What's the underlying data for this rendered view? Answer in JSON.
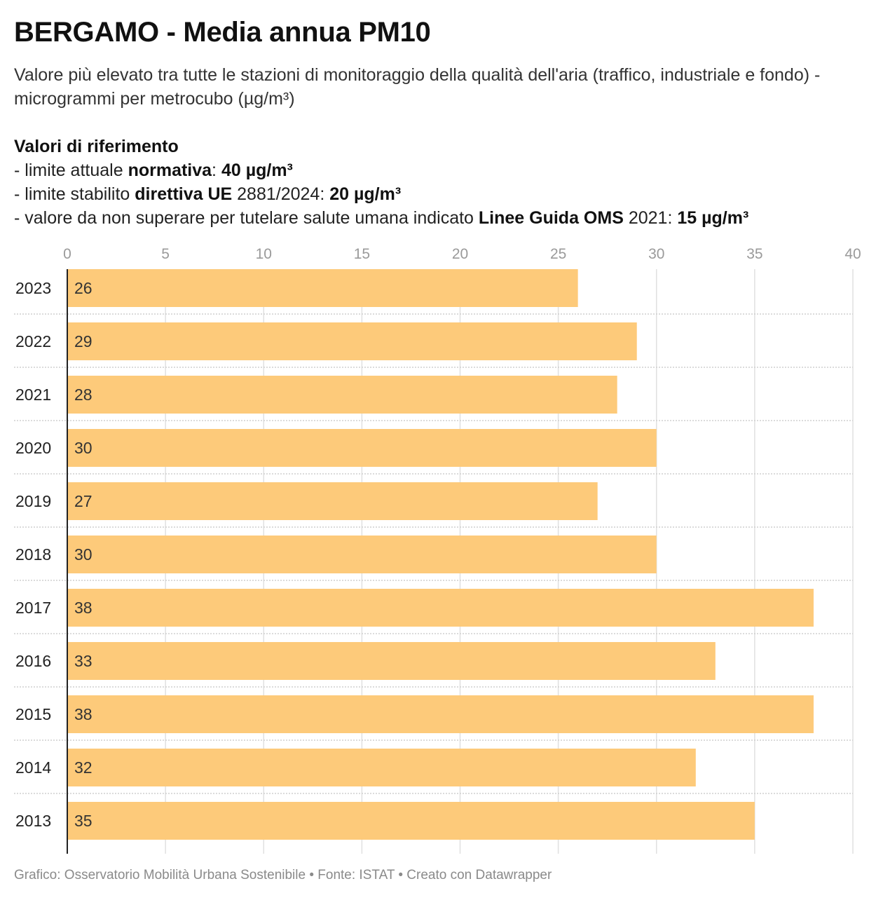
{
  "title": "BERGAMO - Media annua PM10",
  "subtitle": "Valore più elevato tra tutte le stazioni di monitoraggio della qualità dell'aria (traffico, industriale e fondo) - microgrammi per metrocubo (µg/m³)",
  "refs": {
    "heading": "Valori di riferimento",
    "line1": {
      "pre": "- limite attuale ",
      "b1": "normativa",
      "mid": ": ",
      "b2": "40 µg/m³"
    },
    "line2": {
      "pre": "- limite stabilito ",
      "b1": "direttiva UE",
      "mid": " 2881/2024: ",
      "b2": "20 µg/m³"
    },
    "line3": {
      "pre": "- valore da non superare per tutelare salute umana indicato ",
      "b1": "Linee Guida OMS",
      "mid": " 2021: ",
      "b2": "15 µg/m³"
    }
  },
  "chart_data": {
    "type": "bar",
    "orientation": "horizontal",
    "categories": [
      "2023",
      "2022",
      "2021",
      "2020",
      "2019",
      "2018",
      "2017",
      "2016",
      "2015",
      "2014",
      "2013"
    ],
    "values": [
      26,
      29,
      28,
      30,
      27,
      30,
      38,
      33,
      38,
      32,
      35
    ],
    "value_labels": [
      "26",
      "29",
      "28",
      "30",
      "27",
      "30",
      "38",
      "33",
      "38",
      "32",
      "35"
    ],
    "xlim": [
      0,
      40
    ],
    "xticks": [
      0,
      5,
      10,
      15,
      20,
      25,
      30,
      35,
      40
    ],
    "axis_position": "top",
    "grid": true,
    "bar_color": "#fdca7a"
  },
  "footer": "Grafico: Osservatorio Mobilità Urbana Sostenibile • Fonte: ISTAT • Creato con Datawrapper"
}
